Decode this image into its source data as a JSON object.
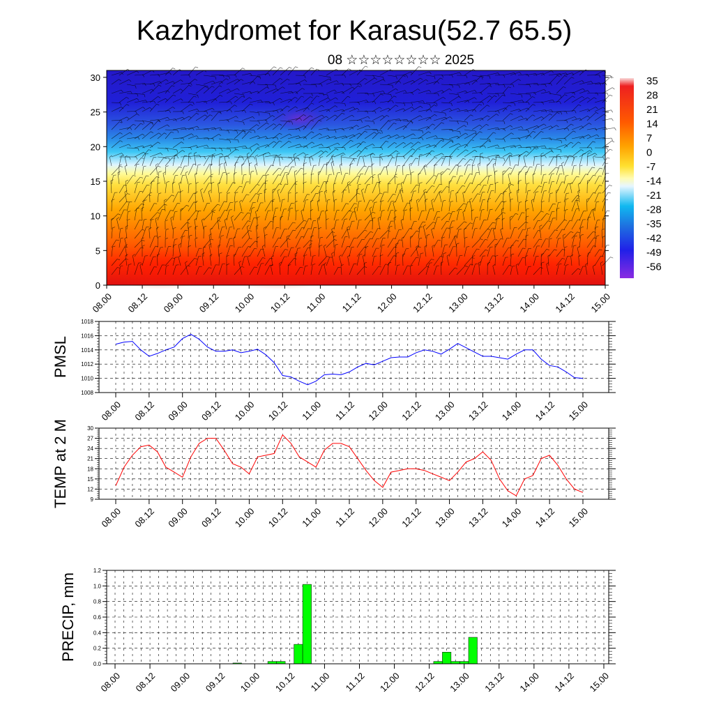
{
  "header": {
    "title": "Kazhydromet for Karasu(52.7 65.5)",
    "subtitle": "08 ☆☆☆☆☆☆☆☆ 2025"
  },
  "colorbar": {
    "labels": [
      "35",
      "28",
      "21",
      "14",
      "7",
      "0",
      "-7",
      "-14",
      "-21",
      "-28",
      "-35",
      "-42",
      "-49",
      "-56"
    ]
  },
  "chart_data": [
    {
      "id": "height",
      "type": "heatmap",
      "description_of_field": "temperature cross-section with wind barbs",
      "x_ticks": [
        "08.00",
        "08.12",
        "09.00",
        "09.12",
        "10.00",
        "10.12",
        "11.00",
        "11.12",
        "12.00",
        "12.12",
        "13.00",
        "13.12",
        "14.00",
        "14.12",
        "15.00"
      ],
      "y_ticks": [
        "0",
        "5",
        "10",
        "15",
        "20",
        "25",
        "30"
      ],
      "ylim": [
        0,
        31
      ],
      "color_range": [
        -56,
        35
      ]
    },
    {
      "id": "pmsl",
      "type": "line",
      "ylabel": "PMSL",
      "x_ticks": [
        "08.00",
        "08.12",
        "09.00",
        "09.12",
        "10.00",
        "10.12",
        "11.00",
        "11.12",
        "12.00",
        "12.12",
        "13.00",
        "13.12",
        "14.00",
        "14.12",
        "15.00"
      ],
      "y_ticks": [
        "1008",
        "1010",
        "1012",
        "1014",
        "1016",
        "1018"
      ],
      "ylim": [
        1008,
        1018
      ],
      "series": [
        {
          "color": "#0000ff",
          "values": [
            1014.8,
            1015.1,
            1015.2,
            1014.0,
            1013.1,
            1013.5,
            1014.0,
            1014.4,
            1015.6,
            1016.2,
            1015.5,
            1014.4,
            1013.8,
            1013.8,
            1014.0,
            1013.6,
            1013.8,
            1014.1,
            1013.3,
            1012.2,
            1010.4,
            1010.2,
            1009.6,
            1009.1,
            1009.6,
            1010.5,
            1010.6,
            1010.5,
            1010.9,
            1011.6,
            1012.1,
            1011.9,
            1012.4,
            1012.9,
            1013.0,
            1013.0,
            1013.6,
            1014.0,
            1013.8,
            1013.4,
            1014.1,
            1014.9,
            1014.3,
            1013.7,
            1013.1,
            1013.1,
            1012.9,
            1012.7,
            1013.4,
            1014.0,
            1014.0,
            1012.7,
            1011.8,
            1011.6,
            1010.9,
            1010.1,
            1010.0
          ]
        }
      ]
    },
    {
      "id": "temp",
      "type": "line",
      "ylabel": "TEMP at 2 M",
      "x_ticks": [
        "08.00",
        "08.12",
        "09.00",
        "09.12",
        "10.00",
        "10.12",
        "11.00",
        "11.12",
        "12.00",
        "12.12",
        "13.00",
        "13.12",
        "14.00",
        "14.12",
        "15.00"
      ],
      "y_ticks": [
        "9",
        "12",
        "15",
        "18",
        "21",
        "24",
        "27",
        "30"
      ],
      "ylim": [
        9,
        30
      ],
      "series": [
        {
          "color": "#ff0000",
          "values": [
            13,
            18.5,
            22,
            24.5,
            25,
            23,
            18.5,
            17,
            15.5,
            21.5,
            25.5,
            27,
            27,
            23.5,
            19.5,
            18.5,
            16.5,
            21.5,
            22,
            22.5,
            28,
            25.5,
            21.5,
            20,
            18.5,
            23.5,
            25.5,
            25.5,
            24.5,
            21,
            17.5,
            14.5,
            12.5,
            17,
            17.5,
            18,
            18,
            17.5,
            16.5,
            15.5,
            14.5,
            17,
            20,
            21,
            23,
            20.5,
            15,
            11.5,
            10,
            15,
            16,
            21,
            22,
            19,
            15,
            12,
            11
          ]
        }
      ]
    },
    {
      "id": "precip",
      "type": "bar",
      "ylabel": "PRECIP, mm",
      "x_ticks": [
        "08.00",
        "08.12",
        "09.00",
        "09.12",
        "10.00",
        "10.12",
        "11.00",
        "11.12",
        "12.00",
        "12.12",
        "13.00",
        "13.12",
        "14.00",
        "14.12",
        "15.00"
      ],
      "y_ticks": [
        "0.0",
        "0.2",
        "0.4",
        "0.6",
        "0.8",
        "1.0",
        "1.2"
      ],
      "ylim": [
        0,
        1.2
      ],
      "series": [
        {
          "color": "#00ff00",
          "values": [
            0,
            0,
            0,
            0,
            0,
            0,
            0,
            0,
            0,
            0,
            0,
            0,
            0,
            0,
            0.01,
            0,
            0,
            0,
            0.03,
            0.03,
            0,
            0.25,
            1.02,
            0,
            0,
            0,
            0,
            0,
            0,
            0,
            0,
            0,
            0,
            0,
            0,
            0,
            0,
            0.03,
            0.15,
            0.03,
            0.03,
            0.34,
            0,
            0,
            0,
            0,
            0,
            0,
            0,
            0,
            0,
            0,
            0,
            0,
            0,
            0,
            0
          ]
        }
      ]
    }
  ]
}
